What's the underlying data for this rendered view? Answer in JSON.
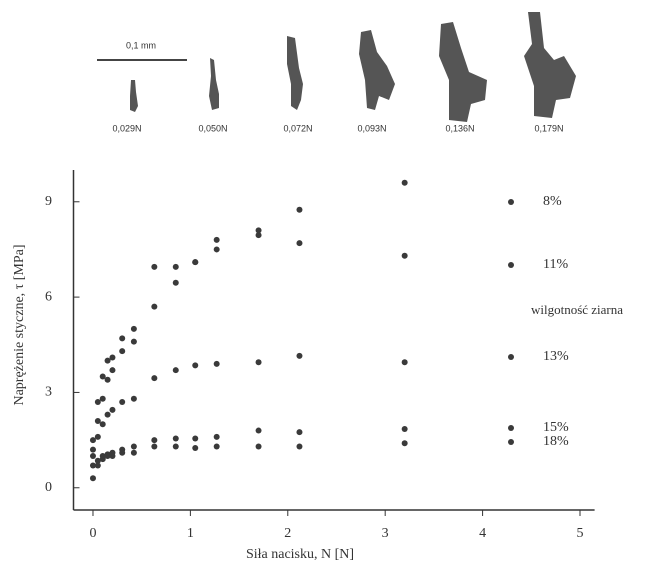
{
  "chart_data": {
    "type": "scatter",
    "image_labels": [
      "0,029N",
      "0,050N",
      "0,072N",
      "0,093N",
      "0,136N",
      "0,179N"
    ],
    "scale_label": "0,1 mm",
    "xlabel": "Siła nacisku, N [N]",
    "ylabel": "Naprężenie styczne, τ [MPa]",
    "legend_title": "wilgotność ziarna",
    "color": "#3a3a3a",
    "x": [
      0,
      0.05,
      0.1,
      0.15,
      0.2,
      0.3,
      0.42,
      0.63,
      0.85,
      1.05,
      1.27,
      1.7,
      2.12,
      3.2
    ],
    "series": [
      {
        "name": "8%",
        "values": [
          1.5,
          2.7,
          3.5,
          4.0,
          4.1,
          4.7,
          5.0,
          6.95,
          6.95,
          7.1,
          7.8,
          8.1,
          8.75,
          9.6
        ]
      },
      {
        "name": "11%",
        "values": [
          1.2,
          2.1,
          2.8,
          3.4,
          3.7,
          4.3,
          4.6,
          5.7,
          6.45,
          7.1,
          7.5,
          7.95,
          7.7,
          7.3
        ]
      },
      {
        "name": "13%",
        "values": [
          1.0,
          1.6,
          2.0,
          2.3,
          2.45,
          2.7,
          2.8,
          3.45,
          3.7,
          3.85,
          3.9,
          3.95,
          4.15,
          3.95
        ]
      },
      {
        "name": "15%",
        "values": [
          0.7,
          0.85,
          1.0,
          1.05,
          1.1,
          1.2,
          1.3,
          1.5,
          1.55,
          1.55,
          1.6,
          1.8,
          1.75,
          1.85
        ]
      },
      {
        "name": "18%",
        "values": [
          0.3,
          0.7,
          0.9,
          1.0,
          1.0,
          1.1,
          1.1,
          1.3,
          1.3,
          1.25,
          1.3,
          1.3,
          1.3,
          1.4
        ]
      }
    ],
    "xlim": [
      -0.2,
      5.15
    ],
    "ylim": [
      -0.7,
      10
    ],
    "xticks": [
      0,
      1,
      2,
      3,
      4,
      5
    ],
    "yticks": [
      0,
      3,
      6,
      9
    ]
  }
}
